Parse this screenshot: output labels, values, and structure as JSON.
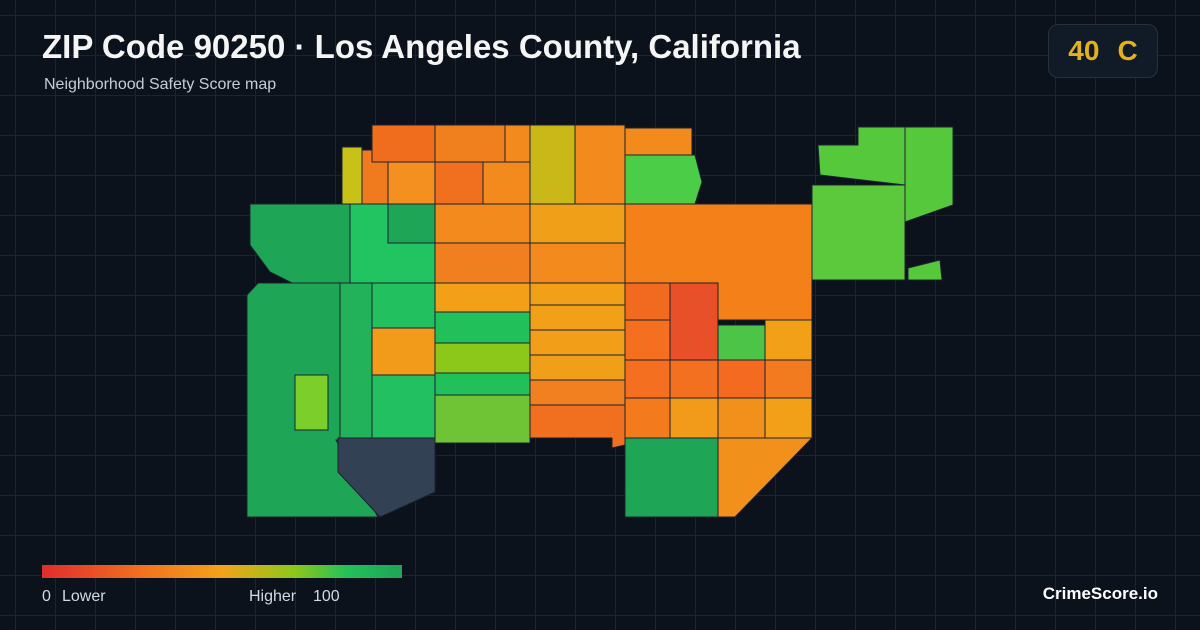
{
  "header": {
    "title": "ZIP Code 90250 · Los Angeles County, California",
    "subtitle": "Neighborhood Safety Score map"
  },
  "score": {
    "value": 40,
    "grade": "C"
  },
  "legend": {
    "min": 0,
    "min_label": "Lower",
    "max_label": "Higher",
    "max": 100
  },
  "footer": {
    "brand": "CrimeScore.io"
  }
}
